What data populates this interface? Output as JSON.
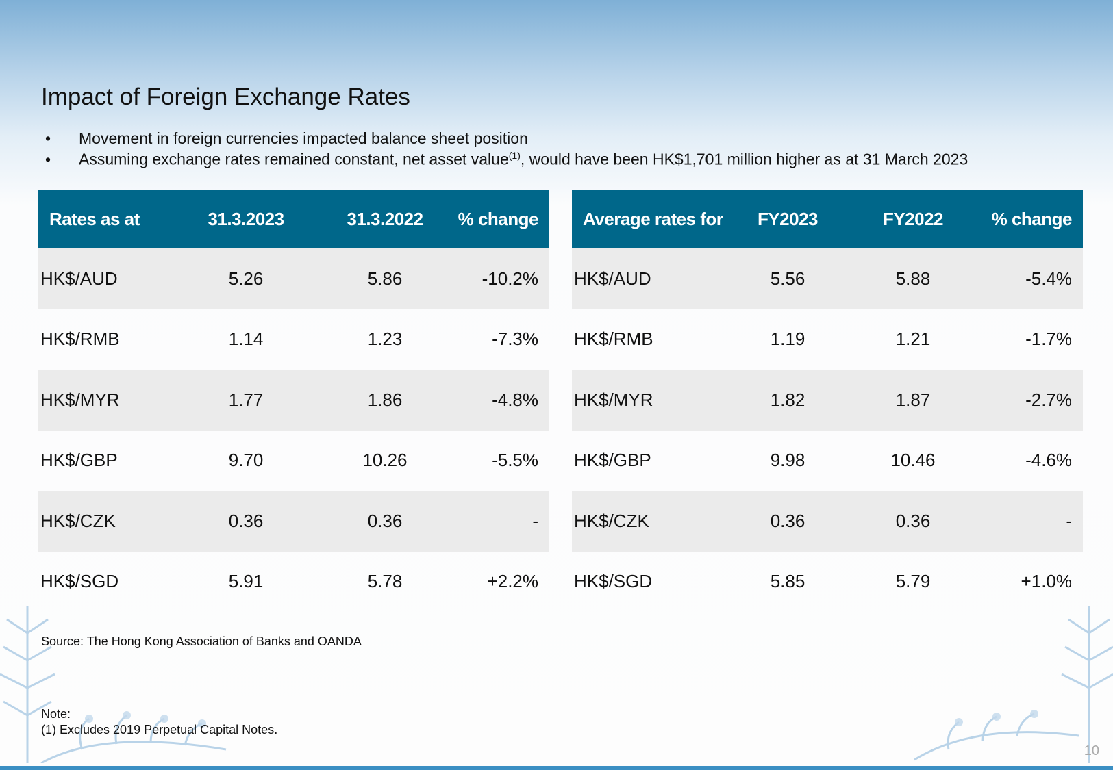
{
  "title": "Impact of Foreign Exchange Rates",
  "bullets": [
    {
      "marker": "•",
      "text": "Movement in foreign currencies impacted balance sheet position"
    },
    {
      "marker": "•",
      "text_before": "Assuming exchange rates remained constant, net asset value",
      "sup": "(1)",
      "text_after": ", would have been HK$1,701 million higher as at 31 March 2023"
    }
  ],
  "left_table": {
    "headers": [
      "Rates as at",
      "31.3.2023",
      "31.3.2022",
      "% change"
    ],
    "rows": [
      [
        "HK$/AUD",
        "5.26",
        "5.86",
        "-10.2%"
      ],
      [
        "HK$/RMB",
        "1.14",
        "1.23",
        "-7.3%"
      ],
      [
        "HK$/MYR",
        "1.77",
        "1.86",
        "-4.8%"
      ],
      [
        "HK$/GBP",
        "9.70",
        "10.26",
        "-5.5%"
      ],
      [
        "HK$/CZK",
        "0.36",
        "0.36",
        "-"
      ],
      [
        "HK$/SGD",
        "5.91",
        "5.78",
        "+2.2%"
      ]
    ]
  },
  "right_table": {
    "headers": [
      "Average rates for",
      "FY2023",
      "FY2022",
      "% change"
    ],
    "rows": [
      [
        "HK$/AUD",
        "5.56",
        "5.88",
        "-5.4%"
      ],
      [
        "HK$/RMB",
        "1.19",
        "1.21",
        "-1.7%"
      ],
      [
        "HK$/MYR",
        "1.82",
        "1.87",
        "-2.7%"
      ],
      [
        "HK$/GBP",
        "9.98",
        "10.46",
        "-4.6%"
      ],
      [
        "HK$/CZK",
        "0.36",
        "0.36",
        "-"
      ],
      [
        "HK$/SGD",
        "5.85",
        "5.79",
        "+1.0%"
      ]
    ]
  },
  "source": "Source: The Hong Kong Association of Banks and OANDA",
  "note_title": "Note:",
  "note_text": "(1) Excludes 2019 Perpetual Capital Notes.",
  "page_number": "10",
  "colors": {
    "header_bg": "#00678a",
    "row_shade": "#ebebeb",
    "bottom_bar": "#3b8fc3"
  }
}
